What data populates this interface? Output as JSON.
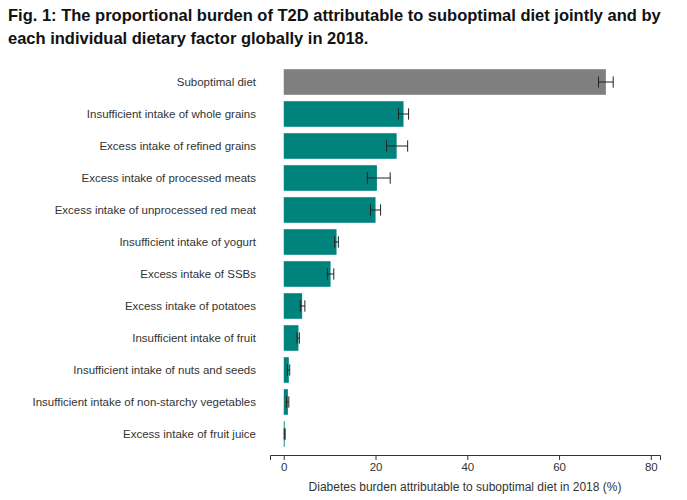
{
  "chart_data": {
    "type": "bar",
    "orientation": "horizontal",
    "title": "Fig. 1: The proportional burden of T2D attributable to suboptimal diet jointly and by each individual dietary factor globally in 2018.",
    "x_label": "Diabetes burden attributable to suboptimal diet in 2018 (%)",
    "categories": [
      "Suboptimal diet",
      "Insufficient intake of whole grains",
      "Excess intake of refined grains",
      "Excess intake of processed meats",
      "Excess intake of unprocessed red meat",
      "Insufficient intake of yogurt",
      "Excess intake of SSBs",
      "Excess intake of potatoes",
      "Insufficient intake of fruit",
      "Insufficient intake of nuts and seeds",
      "Insufficient intake of non-starchy vegetables",
      "Excess intake of fruit juice"
    ],
    "values": [
      70.2,
      26.1,
      24.6,
      20.3,
      20.0,
      11.5,
      10.2,
      4.0,
      3.2,
      1.1,
      0.9,
      0.2
    ],
    "error_low": [
      68.6,
      25.0,
      22.4,
      18.2,
      18.9,
      11.1,
      9.5,
      3.6,
      2.9,
      0.8,
      0.6,
      0.1
    ],
    "error_high": [
      71.8,
      27.2,
      27.0,
      23.2,
      21.1,
      11.9,
      10.9,
      4.6,
      3.4,
      1.3,
      1.1,
      0.3
    ],
    "colors": [
      "#7f7f7f",
      "#00837d",
      "#00837d",
      "#00837d",
      "#00837d",
      "#00837d",
      "#00837d",
      "#00837d",
      "#00837d",
      "#00837d",
      "#00837d",
      "#00837d"
    ],
    "xlim": [
      -3,
      82
    ],
    "xticks": [
      0,
      20,
      40,
      60,
      80
    ],
    "grid": false
  }
}
